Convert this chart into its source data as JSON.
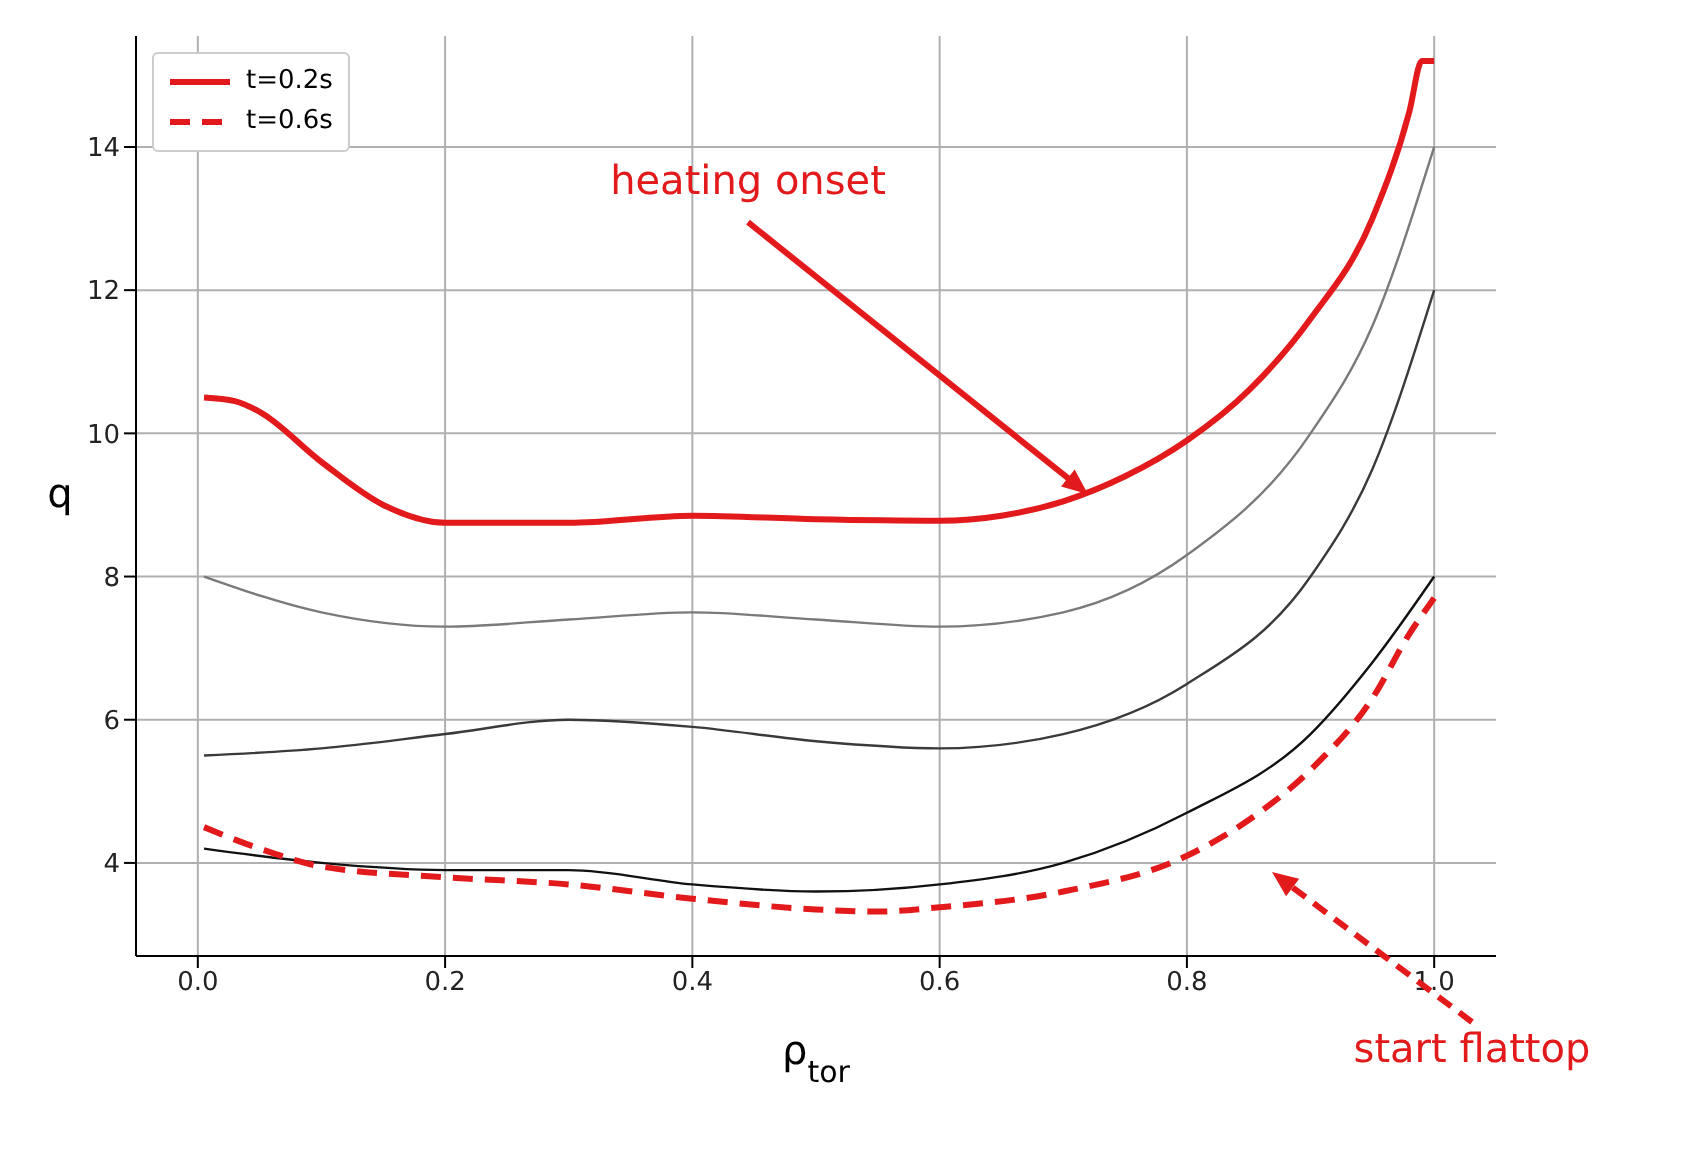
{
  "chart_data": {
    "type": "line",
    "xlabel": "ρ$_{tor}$",
    "ylabel": "q",
    "xlim": [
      -0.05,
      1.05
    ],
    "ylim": [
      2.7,
      15.55
    ],
    "xticks": [
      {
        "value": 0,
        "label": "0.0"
      },
      {
        "value": 0.2,
        "label": "0.2"
      },
      {
        "value": 0.4,
        "label": "0.4"
      },
      {
        "value": 0.6,
        "label": "0.6"
      },
      {
        "value": 0.8,
        "label": "0.8"
      },
      {
        "value": 1,
        "label": "1.0"
      }
    ],
    "yticks": [
      4,
      6,
      8,
      10,
      12,
      14
    ],
    "grid": true,
    "legend": "top left",
    "marker": "none",
    "series": [
      {
        "color": "#7a7a7a",
        "x": [
          0.005,
          0.1,
          0.2,
          0.3,
          0.4,
          0.5,
          0.6,
          0.7,
          0.8,
          0.9,
          0.95,
          1.0
        ],
        "values": [
          8.0,
          7.5,
          7.3,
          7.4,
          7.5,
          7.4,
          7.3,
          7.5,
          8.3,
          10.0,
          11.5,
          14.0
        ]
      },
      {
        "color": "#3a3a3a",
        "x": [
          0.005,
          0.1,
          0.2,
          0.3,
          0.4,
          0.5,
          0.6,
          0.7,
          0.8,
          0.9,
          0.95,
          1.0
        ],
        "values": [
          5.5,
          5.6,
          5.8,
          6.0,
          5.9,
          5.7,
          5.6,
          5.8,
          6.5,
          8.0,
          9.5,
          12.0
        ]
      },
      {
        "color": "#111111",
        "x": [
          0.005,
          0.1,
          0.2,
          0.3,
          0.4,
          0.5,
          0.6,
          0.7,
          0.8,
          0.9,
          0.95,
          1.0
        ],
        "values": [
          4.2,
          4.0,
          3.9,
          3.9,
          3.7,
          3.6,
          3.7,
          4.0,
          4.7,
          5.8,
          6.8,
          8.0
        ]
      },
      {
        "name": "t=0.2s",
        "color": "#e31a1c",
        "line_style": "solid",
        "x": [
          0.005,
          0.03,
          0.05,
          0.1,
          0.15,
          0.2,
          0.3,
          0.4,
          0.5,
          0.6,
          0.65,
          0.7,
          0.75,
          0.8,
          0.85,
          0.9,
          0.95,
          0.98,
          0.99,
          1.0
        ],
        "values": [
          10.5,
          10.45,
          10.3,
          9.6,
          9.0,
          8.75,
          8.75,
          8.85,
          8.8,
          8.78,
          8.85,
          9.05,
          9.4,
          9.9,
          10.6,
          11.6,
          13.0,
          14.5,
          15.2,
          15.2
        ]
      },
      {
        "name": "t=0.6s",
        "color": "#e31a1c",
        "line_style": "dashed",
        "x": [
          0.005,
          0.05,
          0.1,
          0.2,
          0.3,
          0.4,
          0.5,
          0.55,
          0.6,
          0.7,
          0.8,
          0.85,
          0.9,
          0.95,
          0.98,
          1.0
        ],
        "values": [
          4.5,
          4.2,
          3.95,
          3.8,
          3.7,
          3.5,
          3.35,
          3.32,
          3.38,
          3.6,
          4.1,
          4.6,
          5.3,
          6.3,
          7.2,
          7.7
        ]
      }
    ],
    "annotations": [
      {
        "text": "heating onset",
        "x": 0.72,
        "y": 9.15
      },
      "start flattop"
    ]
  }
}
